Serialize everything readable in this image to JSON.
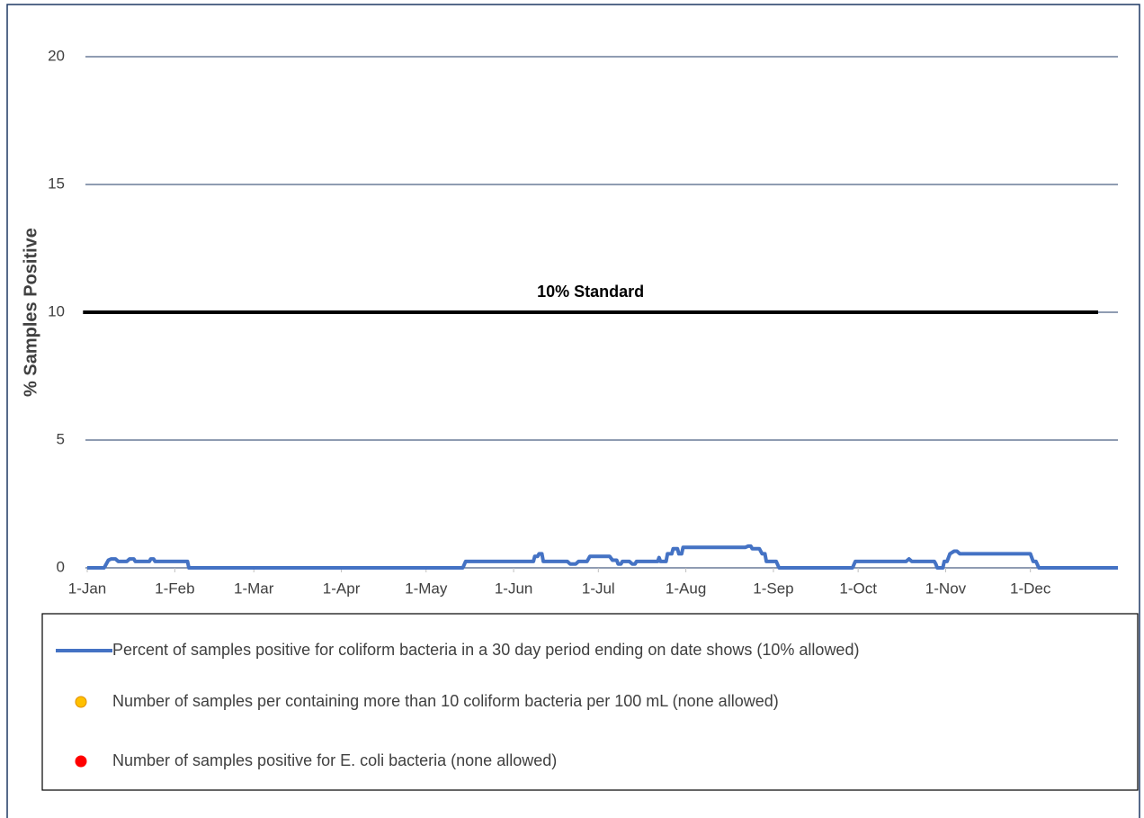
{
  "chart_data": {
    "type": "line",
    "y_label": "% Samples Positive",
    "xlim": [
      0,
      365
    ],
    "xticks": [
      {
        "value": 0,
        "label": "1-Jan"
      },
      {
        "value": 31,
        "label": "1-Feb"
      },
      {
        "value": 59,
        "label": "1-Mar"
      },
      {
        "value": 90,
        "label": "1-Apr"
      },
      {
        "value": 120,
        "label": "1-May"
      },
      {
        "value": 151,
        "label": "1-Jun"
      },
      {
        "value": 181,
        "label": "1-Jul"
      },
      {
        "value": 212,
        "label": "1-Aug"
      },
      {
        "value": 243,
        "label": "1-Sep"
      },
      {
        "value": 273,
        "label": "1-Oct"
      },
      {
        "value": 304,
        "label": "1-Nov"
      },
      {
        "value": 334,
        "label": "1-Dec"
      }
    ],
    "ylim": [
      0,
      20
    ],
    "yticks": [
      0,
      5,
      10,
      15,
      20
    ],
    "grid": true,
    "reference_lines": [
      {
        "label": "10% Standard",
        "value": 10,
        "x": [
          -1.5,
          358
        ],
        "color": "#000000"
      }
    ],
    "series": [
      {
        "name": "Percent of samples positive for coliform bacteria in a 30 day period ending on date shows (10% allowed)",
        "color": "#4472c4",
        "marker": "line",
        "x": [
          0,
          6,
          7.5,
          8.5,
          10,
          11,
          14,
          15,
          16.5,
          17,
          22,
          22.5,
          23.5,
          24,
          35.5,
          36,
          133,
          134,
          158,
          158.5,
          159.5,
          160,
          161,
          161.5,
          170,
          171,
          173,
          174,
          177,
          178,
          185,
          186,
          187.5,
          188,
          189,
          189.5,
          192,
          193,
          194,
          194.5,
          202,
          202.5,
          203,
          205,
          205.5,
          207,
          207.5,
          209,
          209.5,
          210.5,
          211,
          233,
          234,
          235,
          235.5,
          238,
          239,
          240,
          240.5,
          244,
          245,
          271,
          272,
          290,
          291,
          292,
          300,
          300.5,
          301,
          303,
          303.5,
          304.5,
          305.5,
          307,
          308,
          309,
          334,
          335,
          336,
          337,
          365
        ],
        "values": [
          0,
          0,
          0.3,
          0.35,
          0.35,
          0.25,
          0.25,
          0.35,
          0.35,
          0.25,
          0.25,
          0.35,
          0.35,
          0.25,
          0.25,
          0,
          0,
          0.25,
          0.25,
          0.45,
          0.45,
          0.55,
          0.55,
          0.25,
          0.25,
          0.15,
          0.15,
          0.25,
          0.25,
          0.45,
          0.45,
          0.3,
          0.3,
          0.15,
          0.15,
          0.25,
          0.25,
          0.15,
          0.15,
          0.25,
          0.25,
          0.4,
          0.25,
          0.25,
          0.55,
          0.55,
          0.75,
          0.75,
          0.55,
          0.55,
          0.8,
          0.8,
          0.85,
          0.85,
          0.75,
          0.75,
          0.55,
          0.55,
          0.25,
          0.25,
          0,
          0,
          0.25,
          0.25,
          0.35,
          0.25,
          0.25,
          0.15,
          0,
          0,
          0.25,
          0.25,
          0.55,
          0.65,
          0.65,
          0.55,
          0.55,
          0.25,
          0.25,
          0,
          0
        ]
      },
      {
        "name": "Number of samples per containing more than 10 coliform bacteria per 100 mL (none allowed)",
        "color": "#ffc000",
        "marker": "circle",
        "x": [],
        "values": []
      },
      {
        "name": "Number of samples positive for E. coli bacteria (none allowed)",
        "color": "#ff0000",
        "marker": "circle",
        "x": [],
        "values": []
      }
    ]
  }
}
